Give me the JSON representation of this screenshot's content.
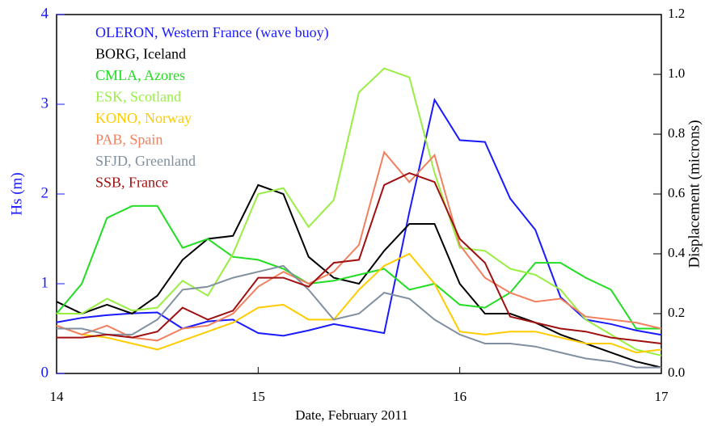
{
  "chart_data": {
    "type": "line",
    "xlabel": "Date, February 2011",
    "ylabel": "Hs (m)",
    "y2label": "Displacement (microns)",
    "xlim": [
      14,
      17
    ],
    "xticks": [
      14,
      15,
      16,
      17
    ],
    "ylim": [
      0,
      4
    ],
    "yticks": [
      0,
      1,
      2,
      3,
      4
    ],
    "ycolor": "#1a1aff",
    "y2lim": [
      0,
      1.2
    ],
    "y2ticks": [
      {
        "value": 0,
        "label": "0.0"
      },
      0.2,
      0.4,
      0.6,
      0.8,
      {
        "value": 1,
        "label": "1.0"
      },
      1.2
    ],
    "x": [
      14,
      14.125,
      14.25,
      14.375,
      14.5,
      14.625,
      14.75,
      14.875,
      15,
      15.125,
      15.25,
      15.375,
      15.5,
      15.625,
      15.75,
      15.875,
      16,
      16.125,
      16.25,
      16.375,
      16.5,
      16.625,
      16.75,
      16.875,
      17
    ],
    "series": [
      {
        "name": "OLERON, Western France (wave buoy)",
        "color": "#1a1aff",
        "values": [
          0.57,
          0.62,
          0.65,
          0.67,
          0.68,
          0.5,
          0.58,
          0.6,
          0.45,
          0.42,
          0.48,
          0.55,
          0.5,
          0.45,
          1.8,
          3.05,
          2.6,
          2.58,
          1.95,
          1.6,
          0.85,
          0.6,
          0.55,
          0.48,
          0.43
        ]
      },
      {
        "name": "BORG, Iceland",
        "color": "#000000",
        "axis": "y2",
        "values": [
          0.24,
          0.2,
          0.23,
          0.2,
          0.26,
          0.38,
          0.45,
          0.46,
          0.63,
          0.6,
          0.39,
          0.32,
          0.3,
          0.41,
          0.5,
          0.5,
          0.3,
          0.2,
          0.2,
          0.17,
          0.13,
          0.1,
          0.07,
          0.04,
          0.02
        ]
      },
      {
        "name": "CMLA, Azores",
        "color": "#22dd22",
        "axis": "y2",
        "values": [
          0.2,
          0.3,
          0.52,
          0.56,
          0.56,
          0.42,
          0.45,
          0.39,
          0.38,
          0.35,
          0.3,
          0.31,
          0.33,
          0.35,
          0.28,
          0.3,
          0.23,
          0.22,
          0.27,
          0.37,
          0.37,
          0.32,
          0.28,
          0.15,
          0.15
        ]
      },
      {
        "name": "ESK, Scotland",
        "color": "#99ee44",
        "axis": "y2",
        "values": [
          0.2,
          0.2,
          0.25,
          0.21,
          0.22,
          0.31,
          0.26,
          0.4,
          0.6,
          0.62,
          0.49,
          0.58,
          0.94,
          1.02,
          0.99,
          0.67,
          0.42,
          0.41,
          0.35,
          0.33,
          0.28,
          0.18,
          0.13,
          0.08,
          0.06
        ]
      },
      {
        "name": "KONO, Norway",
        "color": "#ffcc00",
        "axis": "y2",
        "values": [
          0.16,
          0.13,
          0.12,
          0.1,
          0.08,
          0.11,
          0.14,
          0.17,
          0.22,
          0.23,
          0.18,
          0.18,
          0.28,
          0.36,
          0.4,
          0.3,
          0.14,
          0.13,
          0.14,
          0.14,
          0.12,
          0.1,
          0.1,
          0.07,
          0.08
        ]
      },
      {
        "name": "PAB, Spain",
        "color": "#f08060",
        "axis": "y2",
        "values": [
          0.16,
          0.13,
          0.16,
          0.12,
          0.11,
          0.15,
          0.16,
          0.2,
          0.29,
          0.34,
          0.3,
          0.34,
          0.43,
          0.74,
          0.64,
          0.73,
          0.43,
          0.32,
          0.27,
          0.24,
          0.25,
          0.19,
          0.18,
          0.17,
          0.15
        ]
      },
      {
        "name": "SFJD, Greenland",
        "color": "#8090a0",
        "axis": "y2",
        "values": [
          0.15,
          0.15,
          0.13,
          0.13,
          0.18,
          0.28,
          0.29,
          0.32,
          0.34,
          0.36,
          0.28,
          0.18,
          0.2,
          0.27,
          0.25,
          0.18,
          0.13,
          0.1,
          0.1,
          0.09,
          0.07,
          0.05,
          0.04,
          0.02,
          0.02
        ]
      },
      {
        "name": "SSB, France",
        "color": "#a01010",
        "axis": "y2",
        "values": [
          0.12,
          0.12,
          0.13,
          0.12,
          0.14,
          0.22,
          0.18,
          0.21,
          0.32,
          0.32,
          0.29,
          0.37,
          0.38,
          0.63,
          0.67,
          0.64,
          0.45,
          0.37,
          0.19,
          0.17,
          0.15,
          0.14,
          0.12,
          0.11,
          0.1
        ]
      }
    ]
  }
}
